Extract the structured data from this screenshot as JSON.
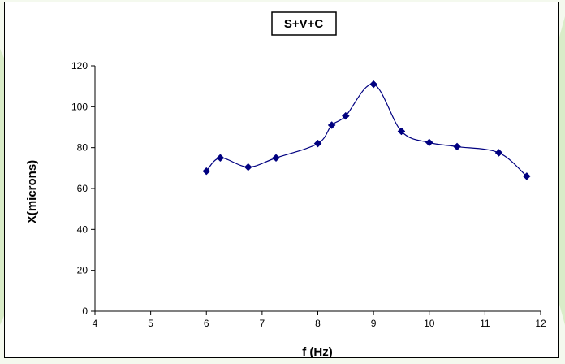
{
  "chart_data": {
    "type": "line",
    "title": "S+V+C",
    "xlabel": "f (Hz)",
    "ylabel": "X(microns)",
    "xlim": [
      4,
      12
    ],
    "ylim": [
      0,
      120
    ],
    "xticks": [
      4,
      5,
      6,
      7,
      8,
      9,
      10,
      11,
      12
    ],
    "yticks": [
      0,
      20,
      40,
      60,
      80,
      100,
      120
    ],
    "grid": false,
    "legend": "none",
    "smooth": true,
    "series": [
      {
        "color": "#000080",
        "marker": "diamond",
        "x": [
          6,
          6.25,
          6.75,
          7.25,
          8,
          8.25,
          8.5,
          9,
          9.5,
          10,
          10.5,
          11.25,
          11.75
        ],
        "y": [
          68.5,
          75,
          70.5,
          75,
          82,
          91,
          95.5,
          111,
          88,
          82.5,
          80.5,
          77.5,
          66
        ]
      }
    ]
  }
}
